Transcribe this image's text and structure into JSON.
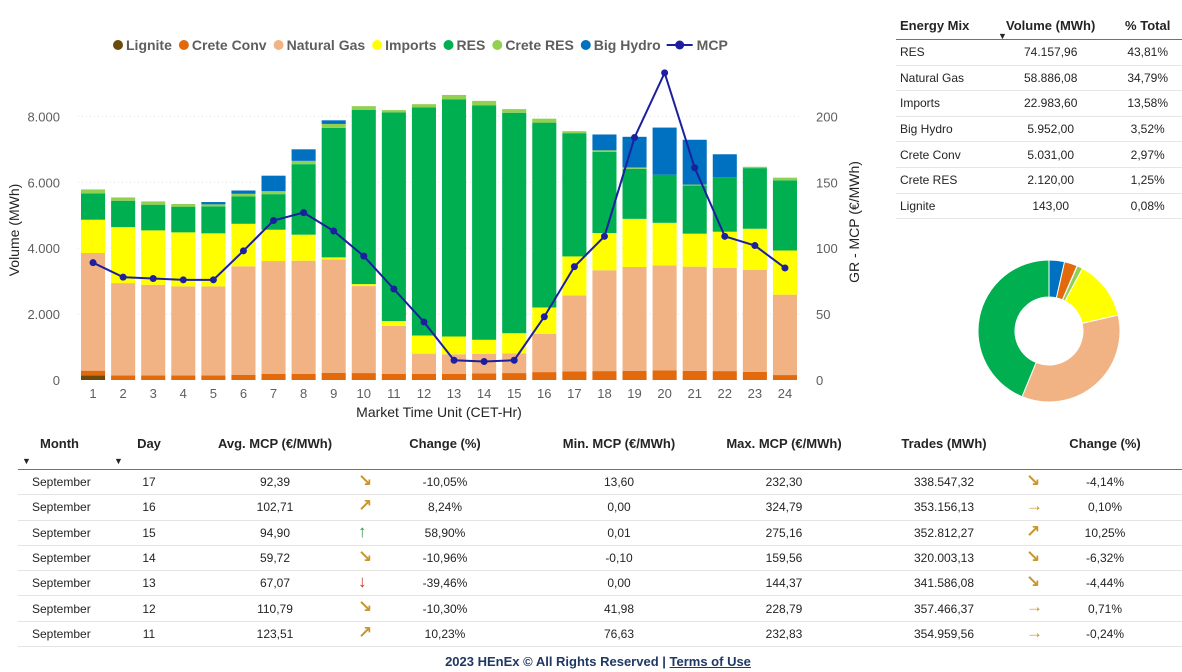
{
  "legend": [
    {
      "name": "Lignite",
      "color": "#6b4b0c",
      "kind": "dot"
    },
    {
      "name": "Crete Conv",
      "color": "#e2690c",
      "kind": "dot"
    },
    {
      "name": "Natural Gas",
      "color": "#f2b384",
      "kind": "dot"
    },
    {
      "name": "Imports",
      "color": "#ffff00",
      "kind": "dot"
    },
    {
      "name": "RES",
      "color": "#00b050",
      "kind": "dot"
    },
    {
      "name": "Crete RES",
      "color": "#92d050",
      "kind": "dot"
    },
    {
      "name": "Big Hydro",
      "color": "#0070c0",
      "kind": "dot"
    },
    {
      "name": "MCP",
      "color": "#1c1f9e",
      "kind": "line"
    }
  ],
  "chart_data": {
    "type": "bar",
    "stacked": true,
    "xlabel": "Market Time Unit (CET-Hr)",
    "ylabel": "Volume (MWh)",
    "y2label": "GR - MCP (€/MWh)",
    "ylim": [
      0,
      8800
    ],
    "y2lim": [
      0,
      220
    ],
    "yticks": [
      0,
      2000,
      4000,
      6000,
      8000
    ],
    "yticklabels": [
      "0",
      "2.000",
      "4.000",
      "6.000",
      "8.000"
    ],
    "y2ticks": [
      0,
      50,
      100,
      150,
      200
    ],
    "categories": [
      "1",
      "2",
      "3",
      "4",
      "5",
      "6",
      "7",
      "8",
      "9",
      "10",
      "11",
      "12",
      "13",
      "14",
      "15",
      "16",
      "17",
      "18",
      "19",
      "20",
      "21",
      "22",
      "23",
      "24"
    ],
    "series": [
      {
        "name": "Lignite",
        "color": "#6b4b0c",
        "values": [
          143,
          0,
          0,
          0,
          0,
          0,
          0,
          0,
          0,
          0,
          0,
          0,
          0,
          0,
          0,
          0,
          0,
          0,
          0,
          0,
          0,
          0,
          0,
          0
        ]
      },
      {
        "name": "Crete Conv",
        "color": "#e2690c",
        "values": [
          140,
          140,
          140,
          140,
          140,
          160,
          190,
          190,
          220,
          210,
          190,
          190,
          190,
          200,
          210,
          240,
          260,
          270,
          280,
          290,
          280,
          270,
          250,
          150
        ]
      },
      {
        "name": "Natural Gas",
        "color": "#f2b384",
        "values": [
          3570,
          2800,
          2750,
          2700,
          2700,
          3290,
          3420,
          3430,
          3440,
          2640,
          1450,
          610,
          590,
          590,
          600,
          1160,
          2310,
          3060,
          3150,
          3190,
          3160,
          3130,
          3090,
          2440
        ]
      },
      {
        "name": "Imports",
        "color": "#ffff00",
        "values": [
          1010,
          1700,
          1650,
          1640,
          1610,
          1290,
          950,
          790,
          60,
          60,
          150,
          550,
          540,
          430,
          610,
          800,
          1180,
          1130,
          1460,
          1290,
          1000,
          1100,
          1250,
          1340
        ]
      },
      {
        "name": "RES",
        "color": "#00b050",
        "values": [
          800,
          800,
          780,
          780,
          820,
          830,
          1080,
          2140,
          3930,
          5290,
          6330,
          6920,
          7200,
          7110,
          6690,
          5610,
          3740,
          2460,
          1520,
          1460,
          1460,
          1650,
          1840,
          2130
        ]
      },
      {
        "name": "Crete RES",
        "color": "#92d050",
        "values": [
          120,
          100,
          100,
          80,
          60,
          80,
          90,
          100,
          120,
          110,
          70,
          100,
          130,
          140,
          110,
          120,
          60,
          50,
          40,
          0,
          30,
          0,
          40,
          80
        ]
      },
      {
        "name": "Big Hydro",
        "color": "#0070c0",
        "values": [
          0,
          0,
          0,
          0,
          70,
          100,
          470,
          350,
          110,
          0,
          0,
          0,
          0,
          0,
          0,
          0,
          0,
          480,
          930,
          1430,
          1360,
          700,
          0,
          0
        ]
      }
    ],
    "line": {
      "name": "MCP",
      "color": "#1c1f9e",
      "axis": "y2",
      "values": [
        89,
        78,
        77,
        76,
        76,
        98,
        121,
        127,
        113,
        94,
        69,
        44,
        15,
        14,
        15,
        48,
        86,
        109,
        184,
        233,
        161,
        109,
        102,
        85
      ]
    }
  },
  "mix": {
    "headers": [
      "Energy Mix",
      "Volume (MWh)",
      "% Total"
    ],
    "rows": [
      {
        "name": "RES",
        "volume": "74.157,96",
        "pct": "43,81%"
      },
      {
        "name": "Natural Gas",
        "volume": "58.886,08",
        "pct": "34,79%"
      },
      {
        "name": "Imports",
        "volume": "22.983,60",
        "pct": "13,58%"
      },
      {
        "name": "Big Hydro",
        "volume": "5.952,00",
        "pct": "3,52%"
      },
      {
        "name": "Crete Conv",
        "volume": "5.031,00",
        "pct": "2,97%"
      },
      {
        "name": "Crete RES",
        "volume": "2.120,00",
        "pct": "1,25%"
      },
      {
        "name": "Lignite",
        "volume": "143,00",
        "pct": "0,08%"
      }
    ]
  },
  "donut": {
    "order": [
      "Big Hydro",
      "Crete Conv",
      "Lignite",
      "Crete RES",
      "Imports",
      "Natural Gas",
      "RES"
    ],
    "values": [
      3.52,
      2.97,
      0.08,
      1.25,
      13.58,
      34.79,
      43.81
    ],
    "colors": [
      "#0070c0",
      "#e2690c",
      "#6b4b0c",
      "#92d050",
      "#ffff00",
      "#f2b384",
      "#00b050"
    ]
  },
  "daily": {
    "headers": [
      "Month",
      "Day",
      "Avg. MCP (€/MWh)",
      "Change (%)",
      "Min. MCP (€/MWh)",
      "Max. MCP (€/MWh)",
      "Trades (MWh)",
      "Change (%)"
    ],
    "rows": [
      {
        "month": "September",
        "day": "17",
        "avg": "92,39",
        "avg_arrow": "↘",
        "avg_arrow_color": "#c8962a",
        "avg_change": "-10,05%",
        "min": "13,60",
        "max": "232,30",
        "trades": "338.547,32",
        "tr_arrow": "↘",
        "tr_arrow_color": "#c8962a",
        "tr_change": "-4,14%"
      },
      {
        "month": "September",
        "day": "16",
        "avg": "102,71",
        "avg_arrow": "↗",
        "avg_arrow_color": "#c8962a",
        "avg_change": "8,24%",
        "min": "0,00",
        "max": "324,79",
        "trades": "353.156,13",
        "tr_arrow": "→",
        "tr_arrow_color": "#c8962a",
        "tr_change": "0,10%"
      },
      {
        "month": "September",
        "day": "15",
        "avg": "94,90",
        "avg_arrow": "↑",
        "avg_arrow_color": "#3d8f52",
        "avg_change": "58,90%",
        "min": "0,01",
        "max": "275,16",
        "trades": "352.812,27",
        "tr_arrow": "↗",
        "tr_arrow_color": "#c8962a",
        "tr_change": "10,25%"
      },
      {
        "month": "September",
        "day": "14",
        "avg": "59,72",
        "avg_arrow": "↘",
        "avg_arrow_color": "#c8962a",
        "avg_change": "-10,96%",
        "min": "-0,10",
        "max": "159,56",
        "trades": "320.003,13",
        "tr_arrow": "↘",
        "tr_arrow_color": "#c8962a",
        "tr_change": "-6,32%"
      },
      {
        "month": "September",
        "day": "13",
        "avg": "67,07",
        "avg_arrow": "↓",
        "avg_arrow_color": "#c0392b",
        "avg_change": "-39,46%",
        "min": "0,00",
        "max": "144,37",
        "trades": "341.586,08",
        "tr_arrow": "↘",
        "tr_arrow_color": "#c8962a",
        "tr_change": "-4,44%"
      },
      {
        "month": "September",
        "day": "12",
        "avg": "110,79",
        "avg_arrow": "↘",
        "avg_arrow_color": "#c8962a",
        "avg_change": "-10,30%",
        "min": "41,98",
        "max": "228,79",
        "trades": "357.466,37",
        "tr_arrow": "→",
        "tr_arrow_color": "#c8962a",
        "tr_change": "0,71%"
      },
      {
        "month": "September",
        "day": "11",
        "avg": "123,51",
        "avg_arrow": "↗",
        "avg_arrow_color": "#c8962a",
        "avg_change": "10,23%",
        "min": "76,63",
        "max": "232,83",
        "trades": "354.959,56",
        "tr_arrow": "→",
        "tr_arrow_color": "#c8962a",
        "tr_change": "-0,24%"
      }
    ]
  },
  "footer": {
    "copyright": "2023 HEnEx © All Rights Reserved |",
    "link": "Terms of Use"
  }
}
